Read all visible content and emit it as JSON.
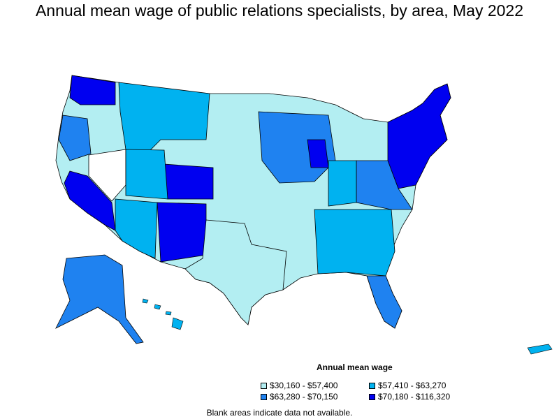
{
  "title": "Annual mean wage of public relations specialists, by area, May 2022",
  "legend": {
    "title": "Annual mean wage",
    "items": [
      {
        "label": "$30,160 - $57,400",
        "color": "#b3eef2"
      },
      {
        "label": "$57,410 - $63,270",
        "color": "#00b2f0"
      },
      {
        "label": "$63,280 - $70,150",
        "color": "#1f82f0"
      },
      {
        "label": "$70,180 - $116,320",
        "color": "#0000f0"
      }
    ]
  },
  "note": "Blank areas indicate data not available.",
  "colors": {
    "low": "#b3eef2",
    "mid_low": "#00b2f0",
    "mid_high": "#1f82f0",
    "high": "#0000f0",
    "no_data": "#ffffff",
    "border": "#000000"
  }
}
